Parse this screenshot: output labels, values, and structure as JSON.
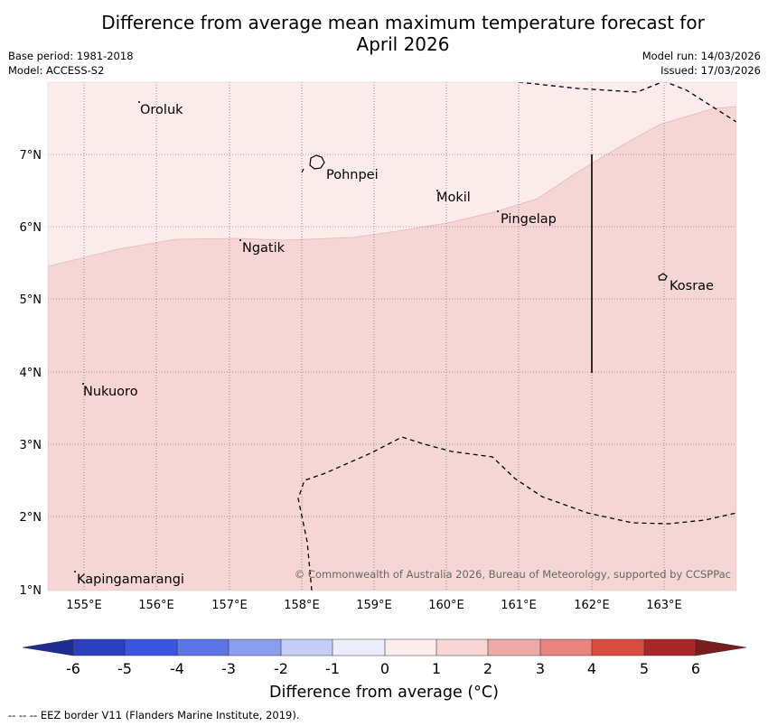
{
  "title": {
    "line1": "Difference from average mean maximum temperature forecast for",
    "line2": "April 2026"
  },
  "meta": {
    "base_period": "Base period: 1981-2018",
    "model": "Model: ACCESS-S2",
    "model_run": "Model run: 14/03/2026",
    "issued": "Issued: 17/03/2026"
  },
  "map": {
    "lon_labels": [
      "155°E",
      "156°E",
      "157°E",
      "158°E",
      "159°E",
      "160°E",
      "161°E",
      "162°E",
      "163°E"
    ],
    "lat_labels": [
      "1°N",
      "2°N",
      "3°N",
      "4°N",
      "5°N",
      "6°N",
      "7°N"
    ],
    "places": [
      "Oroluk",
      "Pohnpei",
      "Mokil",
      "Pingelap",
      "Ngatik",
      "Kosrae",
      "Nukuoro",
      "Kapingamarangi"
    ],
    "copyright": "© Commonwealth of Australia 2026, Bureau of Meteorology, supported by CCSPPac",
    "colors": {
      "zone_0_1": "#fbeceb",
      "zone_1_2": "#f5d6d4"
    }
  },
  "colorbar": {
    "ticks": [
      "-6",
      "-5",
      "-4",
      "-3",
      "-2",
      "-1",
      "0",
      "1",
      "2",
      "3",
      "4",
      "5",
      "6"
    ],
    "colors": [
      "#1e2c94",
      "#2b3fbf",
      "#3b55e0",
      "#5b74e6",
      "#8a9ef0",
      "#c4cdf7",
      "#ececfb",
      "#fcecec",
      "#f6d5d4",
      "#eeaaa8",
      "#e8837f",
      "#d94c3f",
      "#a8282a",
      "#7a1b1c"
    ],
    "label": "Difference from average (°C)"
  },
  "footnote": "--  --  -- EEZ border V11 (Flanders Marine Institute, 2019)."
}
